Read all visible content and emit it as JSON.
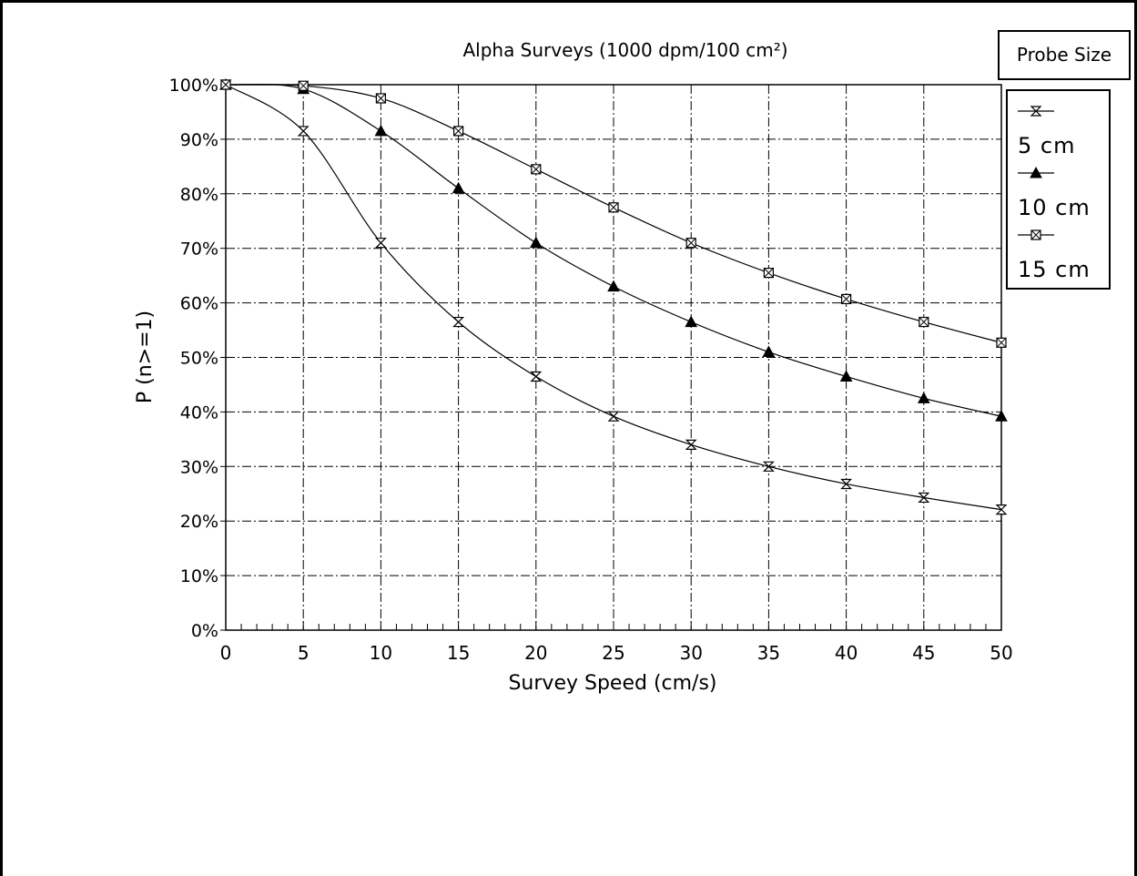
{
  "chart_data": {
    "type": "line",
    "title": "Alpha Surveys  (1000 dpm/100 cm²)",
    "xlabel": "Survey Speed (cm/s)",
    "ylabel": "P (n>=1)",
    "x": [
      0,
      5,
      10,
      15,
      20,
      25,
      30,
      35,
      40,
      45,
      50
    ],
    "x_ticks": [
      "0",
      "5",
      "10",
      "15",
      "20",
      "25",
      "30",
      "35",
      "40",
      "45",
      "50"
    ],
    "y_ticks": [
      "0%",
      "10%",
      "20%",
      "30%",
      "40%",
      "50%",
      "60%",
      "70%",
      "80%",
      "90%",
      "100%"
    ],
    "xlim": [
      0,
      50
    ],
    "ylim": [
      0,
      100
    ],
    "grid": true,
    "legend_title": "Probe Size",
    "legend_position": "right",
    "series": [
      {
        "name": "5 cm",
        "marker": "hourglass-x",
        "values": [
          100,
          91.5,
          71,
          56.5,
          46.5,
          39.2,
          34,
          30,
          26.8,
          24.3,
          22.1
        ]
      },
      {
        "name": "10 cm",
        "marker": "filled-triangle",
        "values": [
          100,
          99.2,
          91.5,
          81,
          71,
          63,
          56.5,
          51,
          46.5,
          42.5,
          39.2
        ]
      },
      {
        "name": "15 cm",
        "marker": "crossed-square",
        "values": [
          100,
          99.8,
          97.5,
          91.5,
          84.5,
          77.5,
          71,
          65.5,
          60.7,
          56.5,
          52.7
        ]
      }
    ]
  }
}
